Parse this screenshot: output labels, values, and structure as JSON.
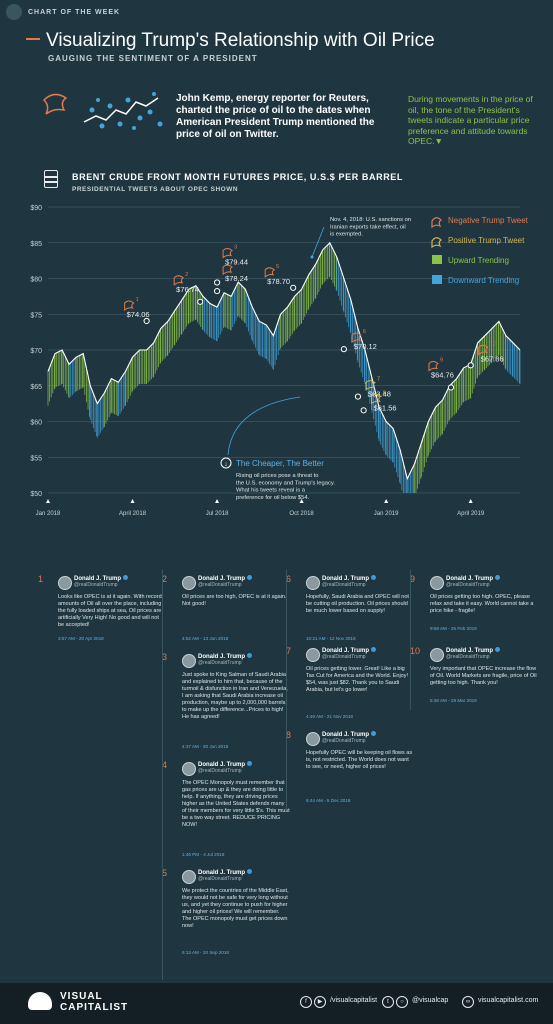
{
  "header": {
    "badge": "CHART OF THE WEEK",
    "title": "Visualizing Trump's Relationship with Oil Price",
    "subtitle": "GAUGING THE SENTIMENT OF A PRESIDENT",
    "intro": "John Kemp, energy reporter for Reuters, charted the price of oil to the dates when American President Trump mentioned the price of oil on Twitter.",
    "intro_right": "During movements in the price of oil, the tone of the President's tweets indicate a particular price preference and attitude towards OPEC.▼"
  },
  "chart_data": {
    "type": "area",
    "title": "BRENT CRUDE FRONT MONTH FUTURES PRICE, U.S.$ PER BARREL",
    "subtitle": "PRESIDENTIAL TWEETS ABOUT OPEC SHOWN",
    "ylim": [
      50,
      90
    ],
    "yticks": [
      "$90",
      "$85",
      "$80",
      "$75",
      "$70",
      "$65",
      "$60",
      "$55",
      "$50"
    ],
    "xticks": [
      "Jan 2018",
      "April 2018",
      "Jul 2018",
      "Oct 2018",
      "Jan 2019",
      "April 2019"
    ],
    "x": [
      0,
      0.25,
      0.5,
      0.75,
      1,
      1.25,
      1.5,
      1.75,
      2,
      2.25,
      2.5,
      2.75,
      3,
      3.25,
      3.5,
      3.75,
      4,
      4.25,
      4.5,
      4.75,
      5,
      5.25,
      5.5,
      5.75,
      6,
      6.25,
      6.5,
      6.75,
      7,
      7.25,
      7.5,
      7.75,
      8,
      8.25,
      8.5,
      8.75,
      9,
      9.25,
      9.5,
      9.75,
      10,
      10.25,
      10.5,
      10.75,
      11,
      11.25,
      11.5,
      11.75,
      12,
      12.25,
      12.5,
      12.75,
      13,
      13.25,
      13.5,
      13.75,
      14,
      14.25,
      14.5,
      14.75,
      15,
      15.25,
      15.5,
      15.75,
      16,
      16.25,
      16.5,
      16.75
    ],
    "values": [
      67,
      69.5,
      70,
      68,
      69,
      69.5,
      65,
      62.5,
      64,
      66,
      65.5,
      67,
      69,
      70,
      70,
      71,
      73,
      74,
      75.5,
      77,
      78.5,
      79,
      77.5,
      76.5,
      76,
      78,
      77.5,
      79.5,
      78.5,
      76,
      74,
      73.5,
      72,
      75,
      76,
      77.5,
      78.5,
      80.5,
      82,
      84,
      85,
      83,
      80,
      77,
      73,
      70,
      66,
      62,
      60,
      59,
      56,
      52,
      54,
      57,
      60,
      62,
      63,
      65,
      66,
      67.5,
      68,
      71,
      72,
      73,
      74,
      72,
      71,
      70
    ],
    "legend": [
      "Negative Trump Tweet",
      "Positive Trump Tweet",
      "Upward Trending",
      "Downward Trending"
    ],
    "colors": {
      "up": "#8bc34a",
      "down": "#42a5dc",
      "negative": "#e07a4c",
      "positive": "#d4b34a",
      "grid": "#4a6470"
    },
    "tweets": [
      {
        "n": "1",
        "price": "$74.06",
        "sentiment": "negative",
        "x": 3.5,
        "y": 74.06
      },
      {
        "n": "2",
        "price": "$76.74",
        "sentiment": "negative",
        "x": 5.4,
        "y": 76.74
      },
      {
        "n": "3",
        "price": "$79.44",
        "sentiment": "negative",
        "x": 6.0,
        "y": 79.44
      },
      {
        "n": "4",
        "price": "$78.24",
        "sentiment": "negative",
        "x": 6.0,
        "y": 78.24
      },
      {
        "n": "5",
        "price": "$78.70",
        "sentiment": "negative",
        "x": 8.7,
        "y": 78.7
      },
      {
        "n": "6",
        "price": "$70.12",
        "sentiment": "negative",
        "x": 10.5,
        "y": 70.12
      },
      {
        "n": "7",
        "price": "$63.48",
        "sentiment": "positive",
        "x": 11.0,
        "y": 63.48
      },
      {
        "n": "8",
        "price": "$61.56",
        "sentiment": "positive",
        "x": 11.2,
        "y": 61.56
      },
      {
        "n": "9",
        "price": "$64.76",
        "sentiment": "negative",
        "x": 14.3,
        "y": 64.76
      },
      {
        "n": "10",
        "price": "$67.86",
        "sentiment": "negative",
        "x": 15.0,
        "y": 67.86
      }
    ],
    "annotation_top": "Nov. 4, 2018: U.S. sanctions on Iranian exports take effect, oil is exempted.",
    "annotation_bottom_title": "The Cheaper, The Better",
    "annotation_bottom": "Rising oil prices pose a threat to the U.S. economy and Trump's legacy. What his tweets reveal is a preference for oil below $54."
  },
  "tweets": [
    {
      "n": "1",
      "name": "Donald J. Trump",
      "handle": "@realDonaldTrump",
      "text": "Looks like OPEC is at it again. With record amounts of Oil all over the place, including the fully loaded ships at sea, Oil prices are artificially Very High! No good and will not be accepted!",
      "time": "3:57 AM - 20 Apr 2018"
    },
    {
      "n": "2",
      "name": "Donald J. Trump",
      "handle": "@realDonaldTrump",
      "text": "Oil prices are too high, OPEC is at it again. Not good!",
      "time": "4:52 AM - 13 Jun 2018"
    },
    {
      "n": "3",
      "name": "Donald J. Trump",
      "handle": "@realDonaldTrump",
      "text": "Just spoke to King Salman of Saudi Arabia and explained to him that, because of the turmoil & disfunction in Iran and Venezuela, I am asking that Saudi Arabia increase oil production, maybe up to 2,000,000 barrels, to make up the difference...Prices to high! He has agreed!",
      "time": "4:37 AM - 30 Jun 2018"
    },
    {
      "n": "4",
      "name": "Donald J. Trump",
      "handle": "@realDonaldTrump",
      "text": "The OPEC Monopoly must remember that gas prices are up & they are doing little to help. If anything, they are driving prices higher as the United States defends many of their members for very little $'s. This must be a two way street. REDUCE PRICING NOW!",
      "time": "1:46 PM - 4 Jul 2018"
    },
    {
      "n": "5",
      "name": "Donald J. Trump",
      "handle": "@realDonaldTrump",
      "text": "We protect the countries of the Middle East, they would not be safe for very long without us, and yet they continue to push for higher and higher oil prices! We will remember. The OPEC monopoly must get prices down now!",
      "time": "6:13 AM - 20 Sep 2018"
    },
    {
      "n": "6",
      "name": "Donald J. Trump",
      "handle": "@realDonaldTrump",
      "text": "Hopefully, Saudi Arabia and OPEC will not be cutting oil production. Oil prices should be much lower based on supply!",
      "time": "10:21 AM - 12 Nov 2018"
    },
    {
      "n": "7",
      "name": "Donald J. Trump",
      "handle": "@realDonaldTrump",
      "text": "Oil prices getting lower. Great! Like a big Tax Cut for America and the World. Enjoy! $54, was just $82. Thank you to Saudi Arabia, but let's go lower!",
      "time": "4:49 AM - 21 Nov 2018"
    },
    {
      "n": "8",
      "name": "Donald J. Trump",
      "handle": "@realDonaldTrump",
      "text": "Hopefully OPEC will be keeping oil flows as is, not restricted. The World does not want to see, or need, higher oil prices!",
      "time": "6:44 AM - 5 Dec 2018"
    },
    {
      "n": "9",
      "name": "Donald J. Trump",
      "handle": "@realDonaldTrump",
      "text": "Oil prices getting too high. OPEC, please relax and take it easy. World cannot take a price hike - fragile!",
      "time": "9:58 AM - 25 Feb 2019"
    },
    {
      "n": "10",
      "name": "Donald J. Trump",
      "handle": "@realDonaldTrump",
      "text": "Very important that OPEC increase the flow of Oil. World Markets are fragile, price of Oil getting too high. Thank you!",
      "time": "5:36 AM - 28 Mar 2019"
    }
  ],
  "footer": {
    "brand_line1": "VISUAL",
    "brand_line2": "CAPITALIST",
    "social1": "/visualcapitalist",
    "social2": "@visualcap",
    "social3": "visualcapitalist.com"
  }
}
